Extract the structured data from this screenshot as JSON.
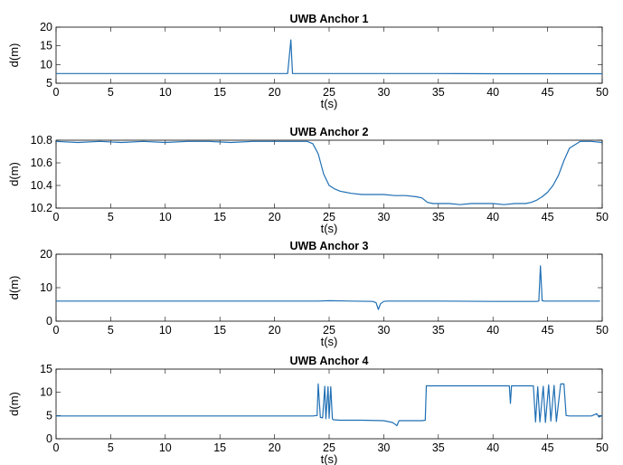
{
  "chart_data": [
    {
      "type": "line",
      "title": "UWB Anchor 1",
      "xlabel": "t(s)",
      "ylabel": "d(m)",
      "xlim": [
        0,
        50
      ],
      "ylim": [
        5,
        20
      ],
      "xticks": [
        0,
        5,
        10,
        15,
        20,
        25,
        30,
        35,
        40,
        45,
        50
      ],
      "yticks": [
        5,
        10,
        15,
        20
      ],
      "grid": false,
      "series": [
        {
          "x": [
            0,
            5,
            10,
            15,
            20,
            21.2,
            21.35,
            21.5,
            21.65,
            22,
            25,
            30,
            35,
            40,
            45,
            50
          ],
          "values": [
            7.6,
            7.6,
            7.6,
            7.6,
            7.6,
            7.6,
            12.0,
            16.6,
            7.6,
            7.6,
            7.6,
            7.6,
            7.6,
            7.55,
            7.55,
            7.55
          ]
        }
      ]
    },
    {
      "type": "line",
      "title": "UWB Anchor 2",
      "xlabel": "t(s)",
      "ylabel": "d(m)",
      "xlim": [
        0,
        50
      ],
      "ylim": [
        10.2,
        10.8
      ],
      "xticks": [
        0,
        5,
        10,
        15,
        20,
        25,
        30,
        35,
        40,
        45,
        50
      ],
      "yticks": [
        10.2,
        10.4,
        10.6,
        10.8
      ],
      "grid": false,
      "series": [
        {
          "x": [
            0,
            2,
            4,
            6,
            8,
            10,
            12,
            14,
            16,
            18,
            20,
            22,
            23,
            23.5,
            24,
            24.5,
            25,
            25.5,
            26,
            27,
            28,
            29,
            30,
            31,
            32,
            33,
            33.5,
            34,
            34.5,
            35,
            36,
            37,
            38,
            39,
            40,
            41,
            42,
            43,
            43.5,
            44,
            44.5,
            45,
            45.5,
            46,
            46.5,
            47,
            48,
            49,
            50
          ],
          "values": [
            10.79,
            10.78,
            10.79,
            10.78,
            10.79,
            10.78,
            10.79,
            10.79,
            10.78,
            10.79,
            10.79,
            10.79,
            10.79,
            10.77,
            10.68,
            10.5,
            10.4,
            10.37,
            10.35,
            10.33,
            10.32,
            10.32,
            10.32,
            10.31,
            10.31,
            10.3,
            10.29,
            10.25,
            10.24,
            10.24,
            10.24,
            10.23,
            10.24,
            10.24,
            10.24,
            10.23,
            10.24,
            10.24,
            10.25,
            10.27,
            10.3,
            10.34,
            10.4,
            10.49,
            10.62,
            10.73,
            10.79,
            10.79,
            10.78
          ]
        }
      ]
    },
    {
      "type": "line",
      "title": "UWB Anchor 3",
      "xlabel": "t(s)",
      "ylabel": "d(m)",
      "xlim": [
        0,
        50
      ],
      "ylim": [
        0,
        20
      ],
      "xticks": [
        0,
        5,
        10,
        15,
        20,
        25,
        30,
        35,
        40,
        45,
        50
      ],
      "yticks": [
        0,
        10,
        20
      ],
      "grid": false,
      "series": [
        {
          "x": [
            0,
            5,
            10,
            15,
            20,
            24,
            25,
            27,
            29,
            29.3,
            29.5,
            29.7,
            30,
            30.3,
            31,
            35,
            40,
            44,
            44.2,
            44.35,
            44.5,
            44.7,
            45,
            49.8
          ],
          "values": [
            6.0,
            6.0,
            6.0,
            6.0,
            6.0,
            6.0,
            6.1,
            6.0,
            5.9,
            5.5,
            3.5,
            5.2,
            5.9,
            6.0,
            6.0,
            6.0,
            5.9,
            5.9,
            6.0,
            16.5,
            6.1,
            6.0,
            6.0,
            6.0
          ]
        }
      ]
    },
    {
      "type": "line",
      "title": "UWB Anchor 4",
      "xlabel": "t(s)",
      "ylabel": "d(m)",
      "xlim": [
        0,
        50
      ],
      "ylim": [
        0,
        15
      ],
      "xticks": [
        0,
        5,
        10,
        15,
        20,
        25,
        30,
        35,
        40,
        45,
        50
      ],
      "yticks": [
        0,
        5,
        10,
        15
      ],
      "grid": false,
      "series": [
        {
          "x": [
            0,
            5,
            10,
            15,
            20,
            23.5,
            23.9,
            24.0,
            24.2,
            24.4,
            24.6,
            24.7,
            24.9,
            25.0,
            25.15,
            25.3,
            25.4,
            26,
            28,
            30,
            30.8,
            31.0,
            31.2,
            31.4,
            33.5,
            33.8,
            33.9,
            36,
            38,
            40,
            41.5,
            41.6,
            41.7,
            41.8,
            42,
            43,
            43.7,
            43.9,
            44.1,
            44.3,
            44.6,
            44.8,
            45.1,
            45.3,
            45.6,
            45.8,
            46.2,
            46.5,
            46.7,
            47,
            49,
            49.5,
            49.7,
            50
          ],
          "values": [
            4.9,
            4.9,
            4.9,
            4.9,
            4.9,
            4.9,
            5.0,
            11.8,
            4.6,
            4.5,
            11.3,
            4.3,
            11.2,
            4.4,
            11.2,
            4.3,
            4.1,
            4.0,
            4.0,
            3.9,
            3.5,
            3.2,
            2.8,
            3.9,
            3.9,
            4.0,
            11.4,
            11.4,
            11.4,
            11.4,
            11.4,
            7.6,
            11.4,
            11.4,
            11.4,
            11.4,
            11.4,
            3.6,
            11.2,
            3.6,
            11.3,
            3.5,
            11.6,
            3.8,
            11.5,
            3.7,
            11.8,
            11.8,
            5.0,
            4.9,
            4.9,
            5.4,
            4.7,
            5.0
          ]
        }
      ]
    }
  ]
}
